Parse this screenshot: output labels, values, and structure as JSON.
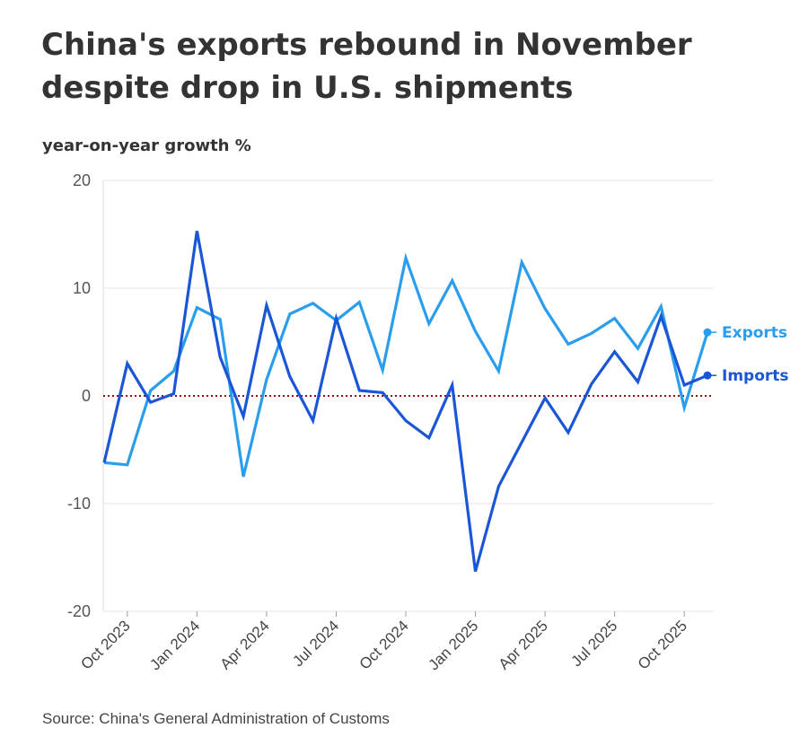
{
  "title": "China's exports rebound in November despite drop in U.S. shipments",
  "source": "Source: China's General Administration of Customs",
  "chart_data": {
    "type": "line",
    "ylabel": "year-on-year growth %",
    "ylim": [
      -20,
      20
    ],
    "yticks": [
      20,
      10,
      0,
      -10,
      -20
    ],
    "x": [
      "Sep 2023",
      "Oct 2023",
      "Nov 2023",
      "Dec 2023",
      "Jan 2024",
      "Feb 2024",
      "Mar 2024",
      "Apr 2024",
      "May 2024",
      "Jun 2024",
      "Jul 2024",
      "Aug 2024",
      "Sep 2024",
      "Oct 2024",
      "Nov 2024",
      "Dec 2024",
      "Jan 2025",
      "Feb 2025",
      "Mar 2025",
      "Apr 2025",
      "May 2025",
      "Jun 2025",
      "Jul 2025",
      "Aug 2025",
      "Sep 2025",
      "Oct 2025",
      "Nov 2025"
    ],
    "xtick_labels": [
      "Oct 2023",
      "Jan 2024",
      "Apr 2024",
      "Jul 2024",
      "Oct 2024",
      "Jan 2025",
      "Apr 2025",
      "Jul 2025",
      "Oct 2025"
    ],
    "xtick_indices": [
      1,
      4,
      7,
      10,
      13,
      16,
      19,
      22,
      25
    ],
    "reference_line": {
      "y": 0,
      "color": "#a00000",
      "style": "dotted"
    },
    "series": [
      {
        "name": "Exports",
        "color": "#2a9ded",
        "values": [
          -6.2,
          -6.4,
          0.5,
          2.3,
          8.2,
          7.1,
          -7.5,
          1.5,
          7.6,
          8.6,
          7.0,
          8.7,
          2.4,
          12.8,
          6.7,
          10.7,
          6.0,
          2.3,
          12.4,
          8.1,
          4.8,
          5.8,
          7.2,
          4.4,
          8.3,
          -1.1,
          5.9
        ]
      },
      {
        "name": "Imports",
        "color": "#1a56d6",
        "values": [
          -6.2,
          3.0,
          -0.6,
          0.2,
          15.3,
          3.6,
          -1.9,
          8.4,
          1.8,
          -2.3,
          7.2,
          0.5,
          0.3,
          -2.3,
          -3.9,
          1.0,
          -16.3,
          -8.4,
          -4.3,
          -0.2,
          -3.4,
          1.1,
          4.1,
          1.3,
          7.4,
          1.0,
          1.9
        ]
      }
    ]
  }
}
